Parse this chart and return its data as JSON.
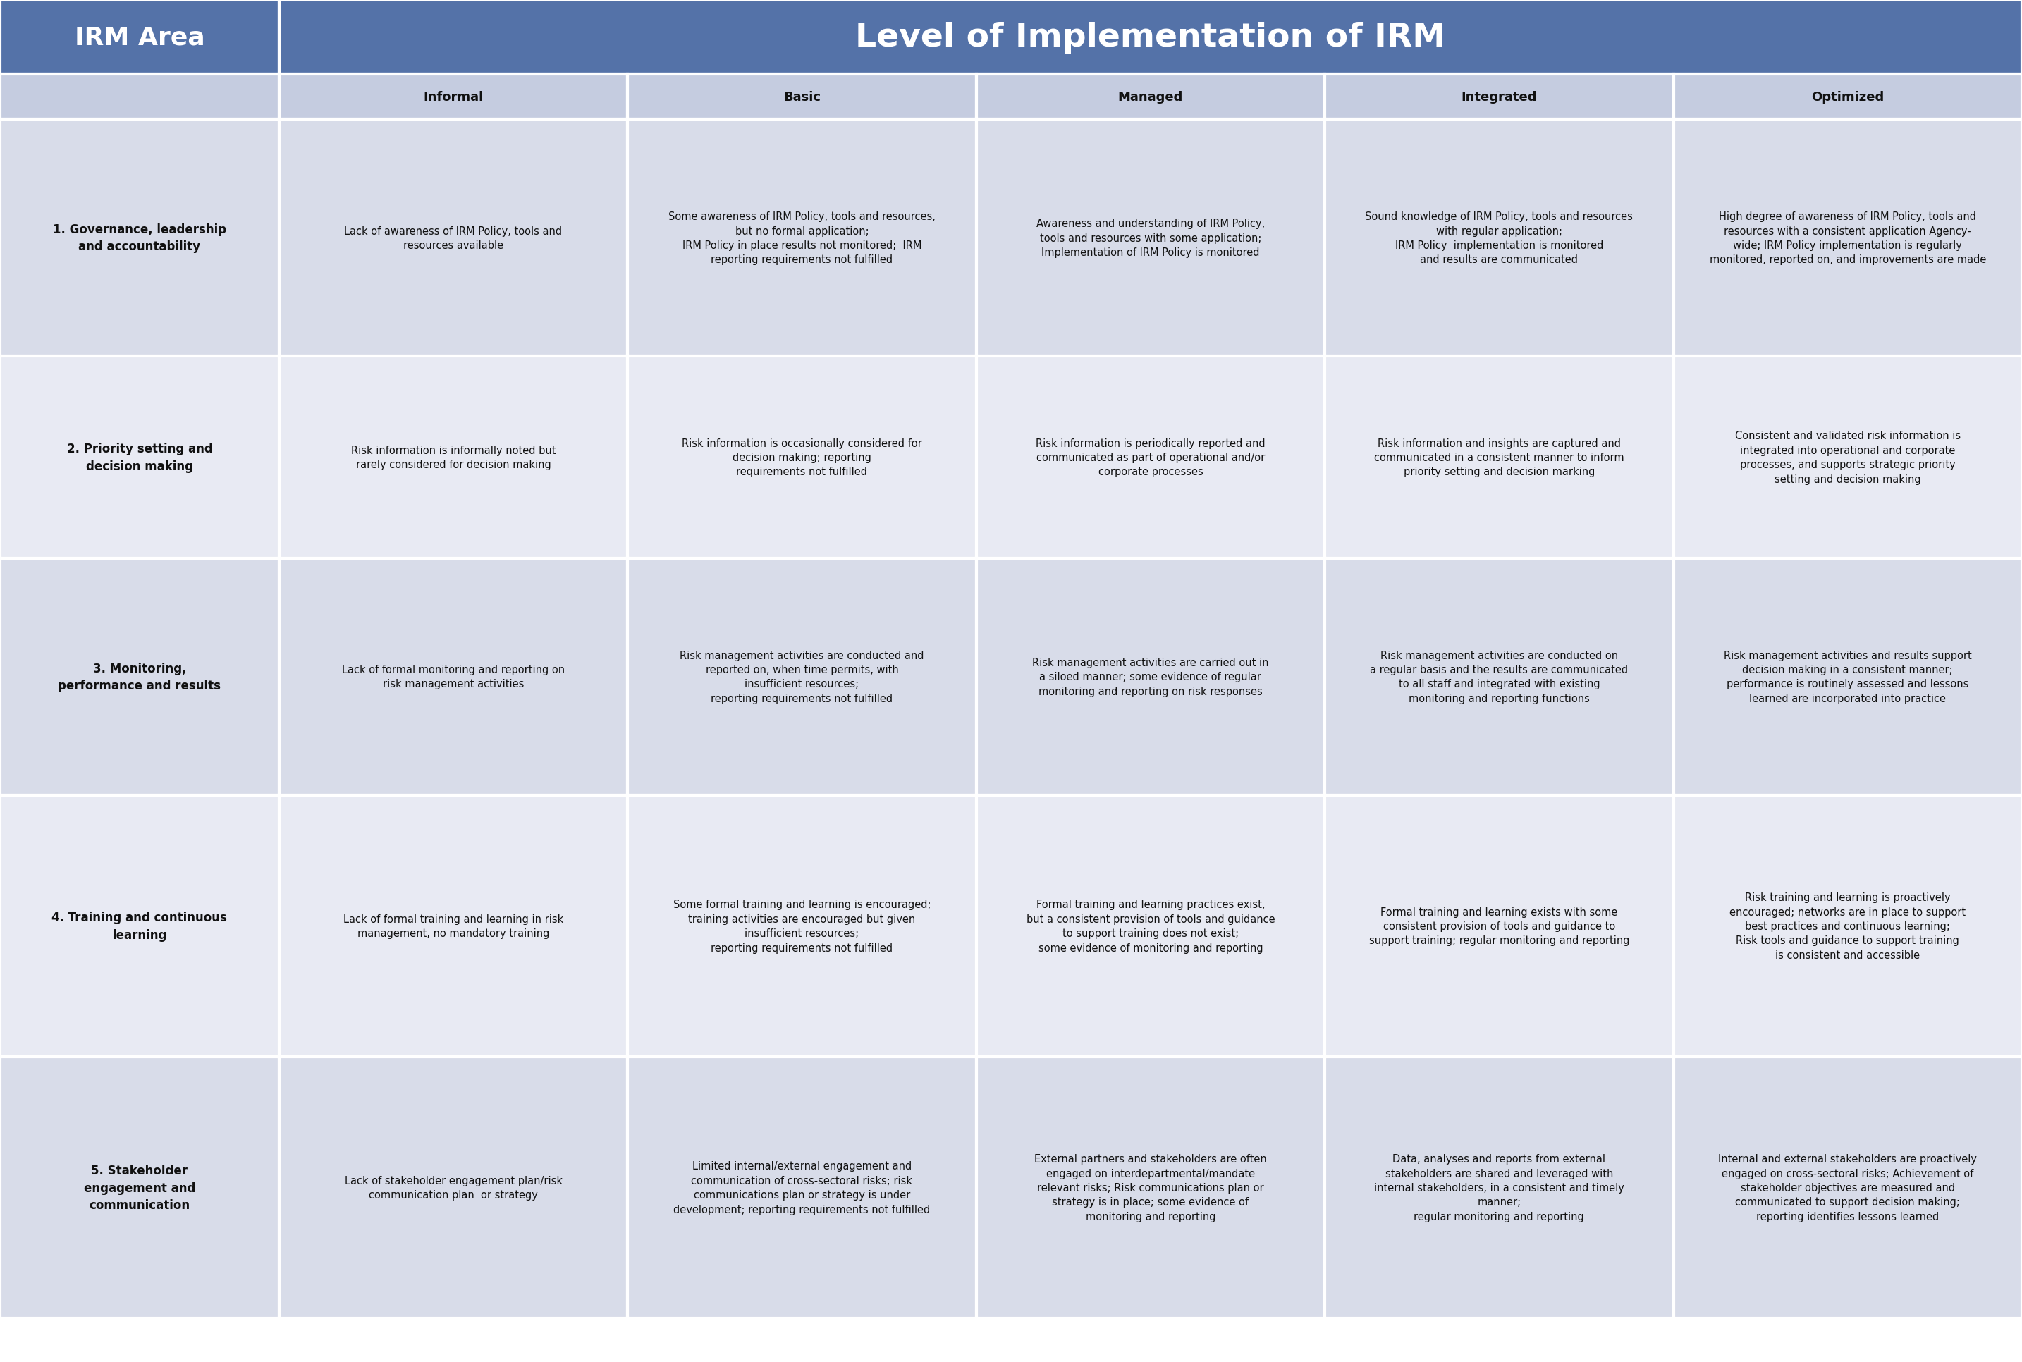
{
  "title_col1": "IRM Area",
  "title_col2": "Level of Implementation of IRM",
  "col_headers": [
    "Informal",
    "Basic",
    "Managed",
    "Integrated",
    "Optimized"
  ],
  "row_headers": [
    "1. Governance, leadership\nand accountability",
    "2. Priority setting and\ndecision making",
    "3. Monitoring,\nperformance and results",
    "4. Training and continuous\nlearning",
    "5. Stakeholder\nengagement and\ncommunication"
  ],
  "cells": [
    [
      "Lack of awareness of IRM Policy, tools and\nresources available",
      "Some awareness of IRM Policy, tools and resources,\nbut no formal application;\nIRM Policy in place results not monitored;  IRM\nreporting requirements not fulfilled",
      "Awareness and understanding of IRM Policy,\ntools and resources with some application;\nImplementation of IRM Policy is monitored",
      "Sound knowledge of IRM Policy, tools and resources\nwith regular application;\nIRM Policy  implementation is monitored\nand results are communicated",
      "High degree of awareness of IRM Policy, tools and\nresources with a consistent application Agency-\nwide; IRM Policy implementation is regularly\nmonitored, reported on, and improvements are made"
    ],
    [
      "Risk information is informally noted but\nrarely considered for decision making",
      "Risk information is occasionally considered for\ndecision making; reporting\nrequirements not fulfilled",
      "Risk information is periodically reported and\ncommunicated as part of operational and/or\ncorporate processes",
      "Risk information and insights are captured and\ncommunicated in a consistent manner to inform\npriority setting and decision marking",
      "Consistent and validated risk information is\nintegrated into operational and corporate\nprocesses, and supports strategic priority\nsetting and decision making"
    ],
    [
      "Lack of formal monitoring and reporting on\nrisk management activities",
      "Risk management activities are conducted and\nreported on, when time permits, with\ninsufficient resources;\nreporting requirements not fulfilled",
      "Risk management activities are carried out in\na siloed manner; some evidence of regular\nmonitoring and reporting on risk responses",
      "Risk management activities are conducted on\na regular basis and the results are communicated\nto all staff and integrated with existing\nmonitoring and reporting functions",
      "Risk management activities and results support\ndecision making in a consistent manner;\nperformance is routinely assessed and lessons\nlearned are incorporated into practice"
    ],
    [
      "Lack of formal training and learning in risk\nmanagement, no mandatory training",
      "Some formal training and learning is encouraged;\ntraining activities are encouraged but given\ninsufficient resources;\nreporting requirements not fulfilled",
      "Formal training and learning practices exist,\nbut a consistent provision of tools and guidance\nto support training does not exist;\nsome evidence of monitoring and reporting",
      "Formal training and learning exists with some\nconsistent provision of tools and guidance to\nsupport training; regular monitoring and reporting",
      "Risk training and learning is proactively\nencouraged; networks are in place to support\nbest practices and continuous learning;\nRisk tools and guidance to support training\nis consistent and accessible"
    ],
    [
      "Lack of stakeholder engagement plan/risk\ncommunication plan  or strategy",
      "Limited internal/external engagement and\ncommunication of cross-sectoral risks; risk\ncommunications plan or strategy is under\ndevelopment; reporting requirements not fulfilled",
      "External partners and stakeholders are often\nengaged on interdepartmental/mandate\nrelevant risks; Risk communications plan or\nstrategy is in place; some evidence of\nmonitoring and reporting",
      "Data, analyses and reports from external\nstakeholders are shared and leveraged with\ninternal stakeholders, in a consistent and timely\nmanner;\nregular monitoring and reporting",
      "Internal and external stakeholders are proactively\nengaged on cross-sectoral risks; Achievement of\nstakeholder objectives are measured and\ncommunicated to support decision making;\nreporting identifies lessons learned"
    ]
  ],
  "header_bg": "#5472a8",
  "header_text_color": "#ffffff",
  "subheader_bg": "#c5cce0",
  "subheader_text_color": "#111111",
  "row_bg_odd": "#d8dce9",
  "row_bg_even": "#e8eaf3",
  "row_header_text_color": "#111111",
  "cell_text_color": "#111111",
  "border_color": "#ffffff",
  "fig_bg": "#ffffff"
}
